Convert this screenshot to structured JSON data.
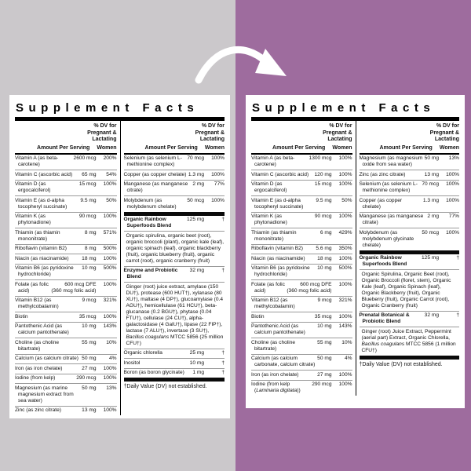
{
  "background": {
    "left_color": "#cbc8cb",
    "right_color": "#9e6c9e"
  },
  "arrow": {
    "name": "curved-arrow",
    "color": "#ffffff"
  },
  "left_panel": {
    "title": "Supplement Facts",
    "header": {
      "dv_line1": "% DV for",
      "dv_line2": "Pregnant &",
      "dv_line3": "Lactating",
      "amount_label": "Amount Per Serving",
      "women_label": "Women"
    },
    "col1": {
      "items": [
        {
          "type": "row",
          "name": "Vitamin A (as beta-carotene)",
          "amount": "2600 mcg",
          "dv": "200%"
        },
        {
          "type": "row",
          "name": "Vitamin C (ascorbic acid)",
          "amount": "65 mg",
          "dv": "54%"
        },
        {
          "type": "row",
          "name": "Vitamin D (as ergocalciferol)",
          "amount": "15 mcg",
          "dv": "100%"
        },
        {
          "type": "row",
          "name": "Vitamin E (as d-alpha tocopheryl succinate)",
          "amount": "9.5 mg",
          "dv": "50%"
        },
        {
          "type": "row",
          "name": "Vitamin K (as phytonadione)",
          "amount": "90 mcg",
          "dv": "100%"
        },
        {
          "type": "row",
          "name": "Thiamin (as thiamin mononitrate)",
          "amount": "8 mg",
          "dv": "571%"
        },
        {
          "type": "row",
          "name": "Riboflavin (vitamin B2)",
          "amount": "8 mg",
          "dv": "500%"
        },
        {
          "type": "row",
          "name": "Niacin (as niacinamide)",
          "amount": "18 mg",
          "dv": "100%"
        },
        {
          "type": "row",
          "name": "Vitamin B6 (as pyridoxine hydrochloride)",
          "amount": "10 mg",
          "dv": "500%"
        },
        {
          "type": "row",
          "name": "Folate (as folic acid)",
          "amount": "600 mcg DFE\n(360 mcg folic acid)",
          "dv": "100%"
        },
        {
          "type": "row",
          "name": "Vitamin B12 (as methylcobalamin)",
          "amount": "9 mcg",
          "dv": "321%"
        },
        {
          "type": "row",
          "name": "Biotin",
          "amount": "35 mcg",
          "dv": "100%"
        },
        {
          "type": "row",
          "name": "Pantothenic Acid (as calcium pantothenate)",
          "amount": "10 mg",
          "dv": "143%"
        },
        {
          "type": "row",
          "name": "Choline (as choline bitartrate)",
          "amount": "55 mg",
          "dv": "10%"
        },
        {
          "type": "row",
          "name": "Calcium (as calcium citrate)",
          "amount": "50 mg",
          "dv": "4%"
        },
        {
          "type": "row",
          "name": "Iron (as iron chelate)",
          "amount": "27 mg",
          "dv": "100%"
        },
        {
          "type": "row",
          "name": "Iodine (from kelp)",
          "amount": "290 mcg",
          "dv": "100%"
        },
        {
          "type": "row",
          "name": "Magnesium (as marine magnesium extract from sea water)",
          "amount": "50 mg",
          "dv": "13%"
        },
        {
          "type": "row",
          "name": "Zinc (as zinc citrate)",
          "amount": "13 mg",
          "dv": "100%"
        }
      ]
    },
    "col2": {
      "items": [
        {
          "type": "row",
          "name": "Selenium (as selenium L-methionine complex)",
          "amount": "70 mcg",
          "dv": "100%"
        },
        {
          "type": "row",
          "name": "Copper (as copper chelate)",
          "amount": "1.3 mg",
          "dv": "100%"
        },
        {
          "type": "row",
          "name": "Manganese (as manganese citrate)",
          "amount": "2 mg",
          "dv": "77%"
        },
        {
          "type": "row",
          "name": "Molybdenum (as molybdenum chelate)",
          "amount": "50 mcg",
          "dv": "100%"
        },
        {
          "type": "bar"
        },
        {
          "type": "blend",
          "name": "Organic Rainbow Superfoods Blend",
          "amount": "125 mg",
          "dv": "†",
          "desc": "Organic spirulina, organic beet (root), organic broccoli (plant), organic kale (leaf), organic spinach (leaf), organic blackberry (fruit), organic blueberry (fruit), organic carrot (root), organic cranberry (fruit)"
        },
        {
          "type": "blend",
          "name": "Enzyme and Probiotic Blend",
          "amount": "32 mg",
          "dv": "†",
          "desc": [
            {
              "t": "Ginger (root) juice extract, amylase (150 DU†), protease (600 HUT†), xylanase (80 XU†), maltase (4 DP†), glucoamylase (0.4 AGU†), hemicellulase (61 HCU†), beta-glucanase (0.2 BGU†), phytase (0.04 FTU†), cellulase (24 CU†), alpha-galactosidase (4 GalU†), lipase (22 FIP†), lactase (7 ALU†), invertase (3 SU†), "
            },
            {
              "t": "Bacillus coagulans",
              "i": true
            },
            {
              "t": " MTCC 5856 (25 million CFU†)"
            }
          ]
        },
        {
          "type": "row",
          "name": "Organic chlorella",
          "amount": "25 mg",
          "dv": "†"
        },
        {
          "type": "row",
          "name": "Inositol",
          "amount": "10 mg",
          "dv": "†"
        },
        {
          "type": "row",
          "name": "Boron (as boron glycinate)",
          "amount": "1 mg",
          "dv": "†"
        },
        {
          "type": "bar"
        },
        {
          "type": "footnote",
          "text": "†Daily Value (DV) not established."
        }
      ]
    }
  },
  "right_panel": {
    "title": "Supplement Facts",
    "header": {
      "dv_line1": "% DV for",
      "dv_line2": "Pregnant &",
      "dv_line3": "Lactating",
      "amount_label": "Amount Per Serving",
      "women_label": "Women"
    },
    "col1": {
      "items": [
        {
          "type": "row",
          "name": "Vitamin A (as beta-carotene)",
          "amount": "1300 mcg",
          "dv": "100%"
        },
        {
          "type": "row",
          "name": "Vitamin C (ascorbic acid)",
          "amount": "120 mg",
          "dv": "100%"
        },
        {
          "type": "row",
          "name": "Vitamin D (as ergocalciferol)",
          "amount": "15 mcg",
          "dv": "100%"
        },
        {
          "type": "row",
          "name": "Vitamin E (as d-alpha tocopheryl succinate)",
          "amount": "9.5 mg",
          "dv": "50%"
        },
        {
          "type": "row",
          "name": "Vitamin K (as phytonadione)",
          "amount": "90 mcg",
          "dv": "100%"
        },
        {
          "type": "row",
          "name": "Thiamin (as thiamin mononitrate)",
          "amount": "6 mg",
          "dv": "429%"
        },
        {
          "type": "row",
          "name": "Riboflavin (vitamin B2)",
          "amount": "5.6 mg",
          "dv": "350%"
        },
        {
          "type": "row",
          "name": "Niacin (as niacinamide)",
          "amount": "18 mg",
          "dv": "100%"
        },
        {
          "type": "row",
          "name": "Vitamin B6 (as pyridoxine hydrochloride)",
          "amount": "10 mg",
          "dv": "500%"
        },
        {
          "type": "row",
          "name": "Folate (as folic acid)",
          "amount": "600 mcg DFE\n(360 mcg folic acid)",
          "dv": "100%"
        },
        {
          "type": "row",
          "name": "Vitamin B12 (as methylcobalamin)",
          "amount": "9 mcg",
          "dv": "321%"
        },
        {
          "type": "row",
          "name": "Biotin",
          "amount": "35 mcg",
          "dv": "100%"
        },
        {
          "type": "row",
          "name": "Pantothenic Acid (as calcium pantothenate)",
          "amount": "10 mg",
          "dv": "143%"
        },
        {
          "type": "row",
          "name": "Choline (as choline bitartrate)",
          "amount": "55 mg",
          "dv": "10%"
        },
        {
          "type": "row",
          "name": "Calcium (as calcium carbonate, calcium citrate)",
          "amount": "50 mg",
          "dv": "4%"
        },
        {
          "type": "row",
          "name": "Iron (as iron chelate)",
          "amount": "27 mg",
          "dv": "100%"
        },
        {
          "type": "row",
          "name": [
            {
              "t": "Iodine (from kelp ("
            },
            {
              "t": "Laminaria digitata",
              "i": true
            },
            {
              "t": "))"
            }
          ],
          "amount": "290 mcg",
          "dv": "100%"
        }
      ]
    },
    "col2": {
      "items": [
        {
          "type": "row",
          "name": "Magnesium (as magnesium oxide from sea water)",
          "amount": "50 mg",
          "dv": "13%"
        },
        {
          "type": "row",
          "name": "Zinc (as zinc citrate)",
          "amount": "13 mg",
          "dv": "100%"
        },
        {
          "type": "row",
          "name": "Selenium (as selenium L-methionine complex)",
          "amount": "70 mcg",
          "dv": "100%"
        },
        {
          "type": "row",
          "name": "Copper (as copper chelate)",
          "amount": "1.3 mg",
          "dv": "100%"
        },
        {
          "type": "row",
          "name": "Manganese (as manganese citrate)",
          "amount": "2 mg",
          "dv": "77%"
        },
        {
          "type": "row",
          "name": "Molybdenum (as molybdenum glycinate chelate)",
          "amount": "50 mcg",
          "dv": "100%"
        },
        {
          "type": "bar"
        },
        {
          "type": "blend",
          "name": "Organic Rainbow Superfoods Blend",
          "amount": "125 mg",
          "dv": "†",
          "desc": "Organic Spirulina, Organic Beet (root), Organic Broccoli (floret, stem), Organic Kale (leaf), Organic Spinach (leaf), Organic Blackberry (fruit), Organic Blueberry (fruit), Organic Carrot (root), Organic Cranberry (fruit)"
        },
        {
          "type": "blend",
          "name": "Prenatal Botanical & Probiotic Blend",
          "amount": "32 mg",
          "dv": "†",
          "desc": [
            {
              "t": "Ginger (root) Juice Extract, Peppermint (aerial part) Extract, Organic Chlorella, "
            },
            {
              "t": "Bacillus coagulans",
              "i": true
            },
            {
              "t": " MTCC 5856 (1 million CFU†)"
            }
          ]
        },
        {
          "type": "bar"
        },
        {
          "type": "footnote",
          "text": "†Daily Value (DV) not established."
        }
      ]
    }
  }
}
